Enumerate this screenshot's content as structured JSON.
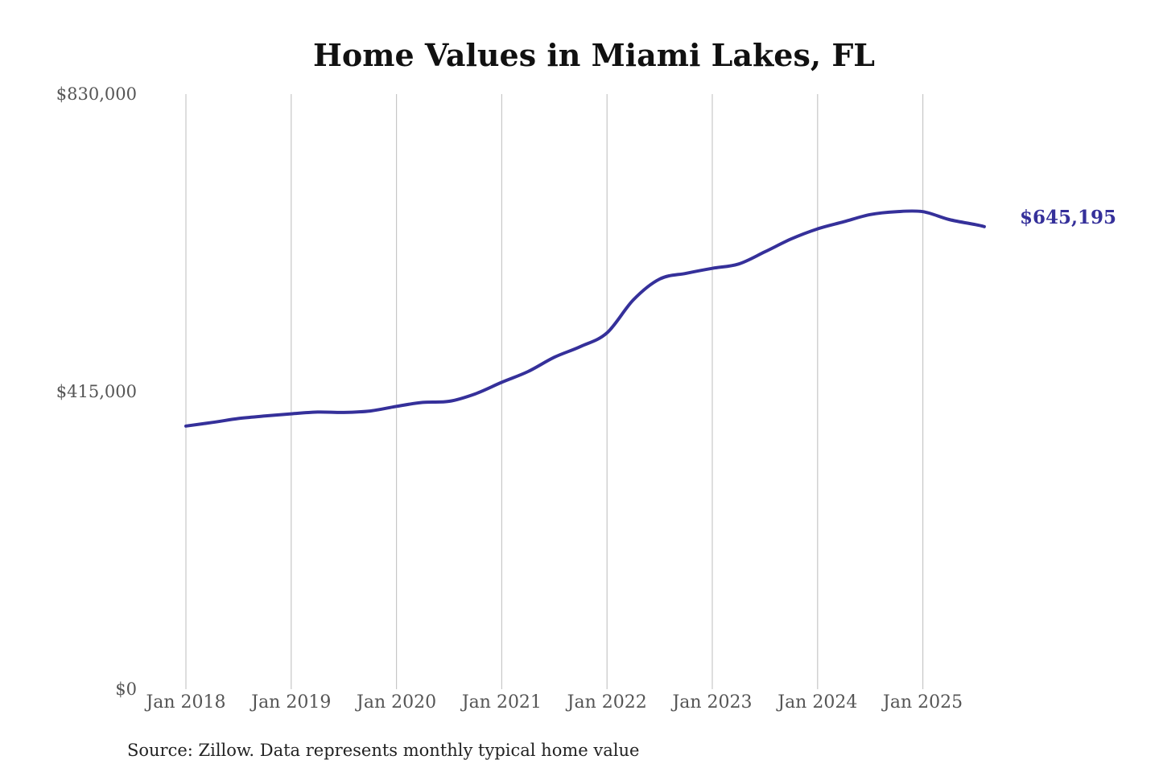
{
  "colors": {
    "series": "#35309a",
    "grid": "#c7c7c7",
    "axis_text": "#555555",
    "title": "#111111"
  },
  "chart_data": {
    "type": "line",
    "title": "Home Values in Miami Lakes, FL",
    "xlabel": "",
    "ylabel": "",
    "ylim": [
      0,
      830000
    ],
    "y_ticks": [
      {
        "value": 0,
        "label": "$0"
      },
      {
        "value": 415000,
        "label": "$415,000"
      },
      {
        "value": 830000,
        "label": "$830,000"
      }
    ],
    "x_ticks": [
      {
        "value": "2018-01",
        "label": "Jan 2018"
      },
      {
        "value": "2019-01",
        "label": "Jan 2019"
      },
      {
        "value": "2020-01",
        "label": "Jan 2020"
      },
      {
        "value": "2021-01",
        "label": "Jan 2021"
      },
      {
        "value": "2022-01",
        "label": "Jan 2022"
      },
      {
        "value": "2023-01",
        "label": "Jan 2023"
      },
      {
        "value": "2024-01",
        "label": "Jan 2024"
      },
      {
        "value": "2025-01",
        "label": "Jan 2025"
      }
    ],
    "grid": {
      "vertical": true,
      "horizontal": false
    },
    "end_label": "$645,195",
    "source": "Source: Zillow. Data represents monthly typical home value",
    "series": [
      {
        "points": [
          {
            "x": "2018-01",
            "y": 367000
          },
          {
            "x": "2018-04",
            "y": 372000
          },
          {
            "x": "2018-07",
            "y": 377500
          },
          {
            "x": "2018-10",
            "y": 381000
          },
          {
            "x": "2019-01",
            "y": 384000
          },
          {
            "x": "2019-04",
            "y": 386500
          },
          {
            "x": "2019-07",
            "y": 386000
          },
          {
            "x": "2019-10",
            "y": 388000
          },
          {
            "x": "2020-01",
            "y": 394500
          },
          {
            "x": "2020-04",
            "y": 400000
          },
          {
            "x": "2020-07",
            "y": 401500
          },
          {
            "x": "2020-10",
            "y": 412000
          },
          {
            "x": "2021-01",
            "y": 428000
          },
          {
            "x": "2021-04",
            "y": 443000
          },
          {
            "x": "2021-07",
            "y": 463000
          },
          {
            "x": "2021-10",
            "y": 478000
          },
          {
            "x": "2022-01",
            "y": 497000
          },
          {
            "x": "2022-04",
            "y": 543000
          },
          {
            "x": "2022-07",
            "y": 572000
          },
          {
            "x": "2022-10",
            "y": 580000
          },
          {
            "x": "2023-01",
            "y": 587000
          },
          {
            "x": "2023-04",
            "y": 593000
          },
          {
            "x": "2023-07",
            "y": 610000
          },
          {
            "x": "2023-10",
            "y": 628000
          },
          {
            "x": "2024-01",
            "y": 642000
          },
          {
            "x": "2024-04",
            "y": 652000
          },
          {
            "x": "2024-07",
            "y": 662000
          },
          {
            "x": "2024-10",
            "y": 666000
          },
          {
            "x": "2025-01",
            "y": 666000
          },
          {
            "x": "2025-04",
            "y": 655000
          },
          {
            "x": "2025-07",
            "y": 648000
          },
          {
            "x": "2025-08",
            "y": 645195
          }
        ]
      }
    ]
  }
}
